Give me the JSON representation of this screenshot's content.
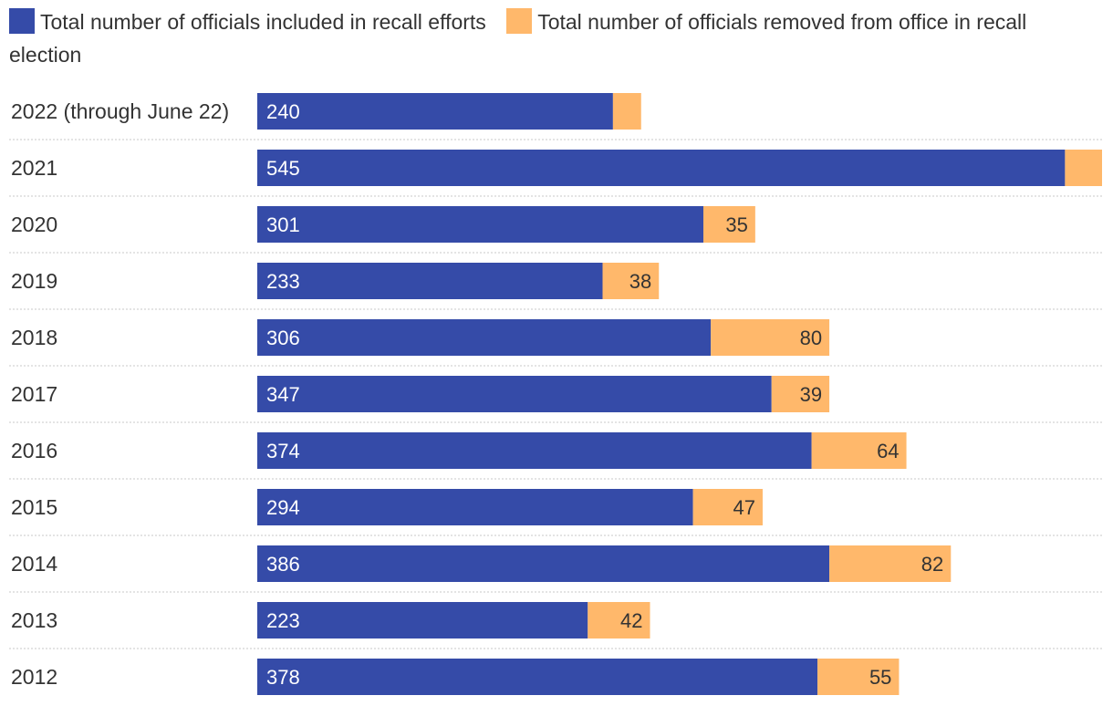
{
  "chart_data": {
    "type": "bar",
    "orientation": "horizontal",
    "stacked": true,
    "categories": [
      "2022 (through June 22)",
      "2021",
      "2020",
      "2019",
      "2018",
      "2017",
      "2016",
      "2015",
      "2014",
      "2013",
      "2012"
    ],
    "series": [
      {
        "name": "Total number of officials included in recall efforts",
        "color": "#354ba8",
        "values": [
          240,
          545,
          301,
          233,
          306,
          347,
          374,
          294,
          386,
          223,
          378
        ],
        "labels": [
          "240",
          "545",
          "301",
          "233",
          "306",
          "347",
          "374",
          "294",
          "386",
          "223",
          "378"
        ]
      },
      {
        "name": "Total number of officials removed from office in recall election",
        "color": "#ffb86b",
        "values": [
          19,
          25,
          35,
          38,
          80,
          39,
          64,
          47,
          82,
          42,
          55
        ],
        "labels": [
          "",
          "",
          "35",
          "38",
          "80",
          "39",
          "64",
          "47",
          "82",
          "42",
          "55"
        ]
      }
    ],
    "xlim": [
      0,
      570
    ],
    "legend_position": "top-left",
    "grid": false,
    "row_separators": "dotted"
  }
}
